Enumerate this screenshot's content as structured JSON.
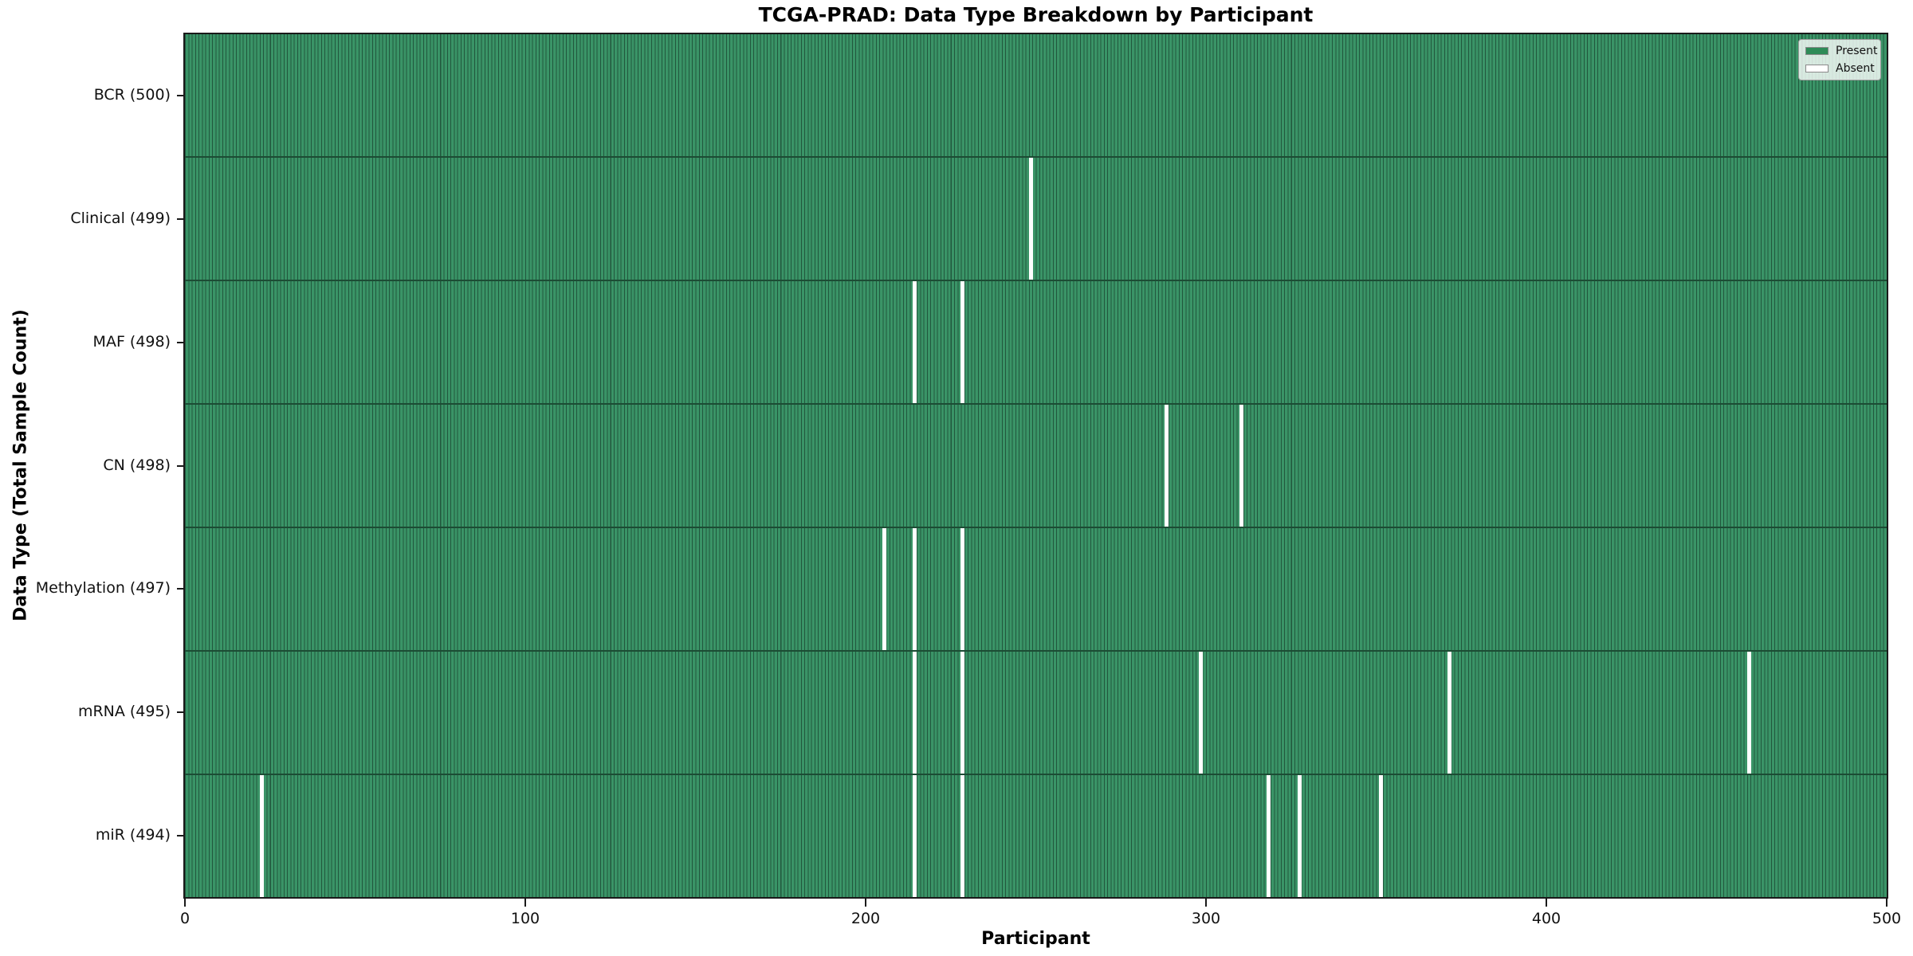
{
  "chart_data": {
    "type": "heatmap",
    "title": "TCGA-PRAD: Data Type Breakdown by Participant",
    "xlabel": "Participant",
    "ylabel": "Data Type (Total Sample Count)",
    "x_range": [
      0,
      500
    ],
    "x_ticks": [
      "0",
      "100",
      "200",
      "300",
      "400",
      "500"
    ],
    "n_participants": 500,
    "grid": false,
    "legend": {
      "position": "upper right",
      "entries": [
        {
          "label": "Present",
          "color": "#2e8b57"
        },
        {
          "label": "Absent",
          "color": "#ffffff"
        }
      ]
    },
    "colors": {
      "present_fill": "#3a9467",
      "bar_edge": "#21573d",
      "absent": "#ffffff",
      "spine": "#1a1a1a"
    },
    "rows": [
      {
        "label": "BCR",
        "total": 500,
        "tick_label": "BCR (500)",
        "absent_participants": []
      },
      {
        "label": "Clinical",
        "total": 499,
        "tick_label": "Clinical (499)",
        "absent_participants": [
          248
        ]
      },
      {
        "label": "MAF",
        "total": 498,
        "tick_label": "MAF (498)",
        "absent_participants": [
          214,
          228
        ]
      },
      {
        "label": "CN",
        "total": 498,
        "tick_label": "CN (498)",
        "absent_participants": [
          288,
          310
        ]
      },
      {
        "label": "Methylation",
        "total": 497,
        "tick_label": "Methylation (497)",
        "absent_participants": [
          205,
          214,
          228
        ]
      },
      {
        "label": "mRNA",
        "total": 495,
        "tick_label": "mRNA (495)",
        "absent_participants": [
          214,
          228,
          298,
          371,
          459
        ]
      },
      {
        "label": "miR",
        "total": 494,
        "tick_label": "miR (494)",
        "absent_participants": [
          22,
          214,
          228,
          318,
          327,
          351
        ]
      }
    ]
  }
}
